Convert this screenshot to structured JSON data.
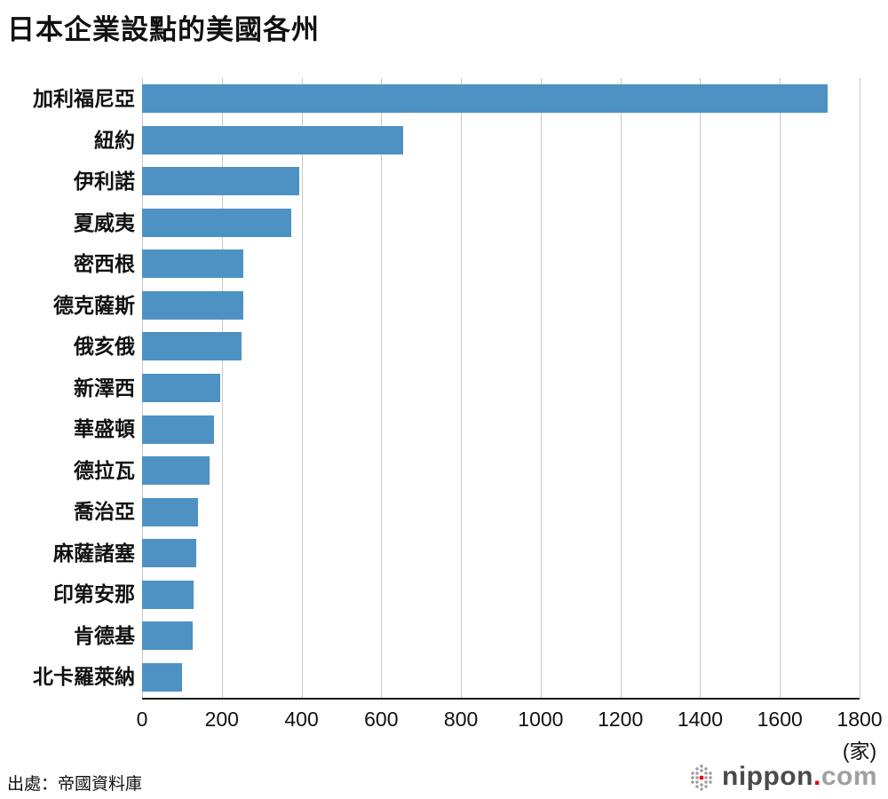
{
  "title": "日本企業設點的美國各州",
  "source": "出處：帝國資料庫",
  "logo": {
    "name": "nippon",
    "dot": ".",
    "tld": "com"
  },
  "chart_data": {
    "type": "bar",
    "orientation": "horizontal",
    "title": "日本企業設點的美國各州",
    "categories": [
      "加利福尼亞",
      "紐約",
      "伊利諾",
      "夏威夷",
      "密西根",
      "德克薩斯",
      "俄亥俄",
      "新澤西",
      "華盛頓",
      "德拉瓦",
      "喬治亞",
      "麻薩諸塞",
      "印第安那",
      "肯德基",
      "北卡羅萊納"
    ],
    "values": [
      1720,
      655,
      395,
      375,
      255,
      255,
      250,
      195,
      180,
      170,
      140,
      135,
      130,
      128,
      100
    ],
    "x_ticks": [
      0,
      200,
      400,
      600,
      800,
      1000,
      1200,
      1400,
      1600,
      1800
    ],
    "xlim": [
      0,
      1800
    ],
    "unit_label": "(家)",
    "bar_color": "#4e92c4",
    "grid": true,
    "legend": "none"
  }
}
